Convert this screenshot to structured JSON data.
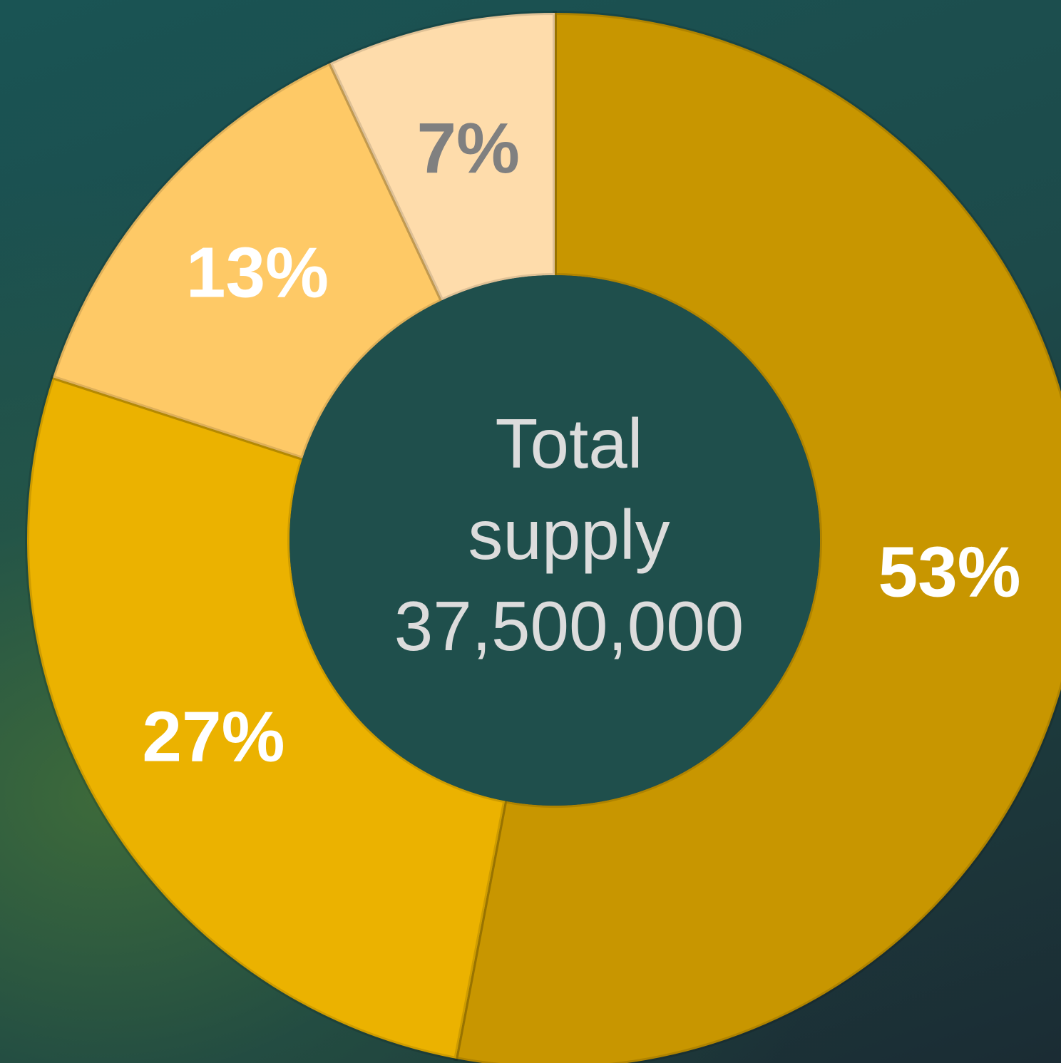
{
  "chart_data": {
    "type": "donut",
    "center_text": [
      "Total",
      "supply",
      "37,500,000"
    ],
    "categories": [
      null,
      null,
      null,
      null
    ],
    "values": [
      53,
      27,
      13,
      7
    ],
    "value_labels": [
      "53%",
      "27%",
      "13%",
      "7%"
    ],
    "colors": [
      "#c89600",
      "#ebb200",
      "#fec966",
      "#fedcab"
    ],
    "label_colors": [
      "#ffffff",
      "#ffffff",
      "#ffffff",
      "#808080"
    ]
  }
}
